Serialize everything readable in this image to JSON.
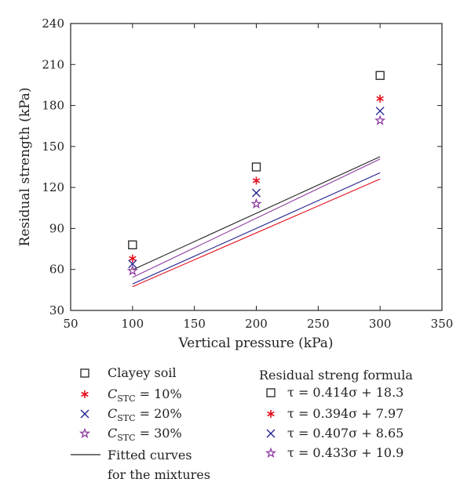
{
  "chart_data": {
    "type": "scatter",
    "xlabel": "Vertical pressure (kPa)",
    "ylabel": "Residual strength (kPa)",
    "xlim": [
      50,
      350
    ],
    "ylim": [
      30,
      240
    ],
    "xticks": [
      50,
      100,
      150,
      200,
      250,
      300,
      350
    ],
    "yticks": [
      30,
      60,
      90,
      120,
      150,
      180,
      210,
      240
    ],
    "grid": false,
    "legend_position": "bottom",
    "series": [
      {
        "name": "Clayey soil",
        "marker": "square",
        "color": "#222222",
        "x": [
          100,
          200,
          300
        ],
        "y": [
          78,
          135,
          202
        ],
        "fit": {
          "slope": 0.414,
          "intercept": 18.3
        }
      },
      {
        "name": "C_STC = 10%",
        "label_parts": [
          "C",
          "STC",
          " = 10%"
        ],
        "marker": "asterisk",
        "color": "#e3101e",
        "x": [
          100,
          200,
          300
        ],
        "y": [
          68,
          125,
          185
        ],
        "fit": {
          "slope": 0.394,
          "intercept": 7.97
        }
      },
      {
        "name": "C_STC = 20%",
        "label_parts": [
          "C",
          "STC",
          " = 20%"
        ],
        "marker": "x",
        "color": "#1f1f8f",
        "x": [
          100,
          200,
          300
        ],
        "y": [
          64,
          116,
          176
        ],
        "fit": {
          "slope": 0.407,
          "intercept": 8.65
        }
      },
      {
        "name": "C_STC = 30%",
        "label_parts": [
          "C",
          "STC",
          " = 30%"
        ],
        "marker": "star",
        "color": "#8e3ba0",
        "x": [
          100,
          200,
          300
        ],
        "y": [
          59,
          108,
          169
        ],
        "fit": {
          "slope": 0.433,
          "intercept": 10.9
        }
      }
    ],
    "fit_line_label_1": "Fitted curves",
    "fit_line_label_2": "for the mixtures",
    "formula_title": "Residual streng formula",
    "formulas": [
      "τ = 0.414σ + 18.3",
      "τ = 0.394σ + 7.97",
      "τ = 0.407σ + 8.65",
      "τ = 0.433σ + 10.9"
    ]
  }
}
